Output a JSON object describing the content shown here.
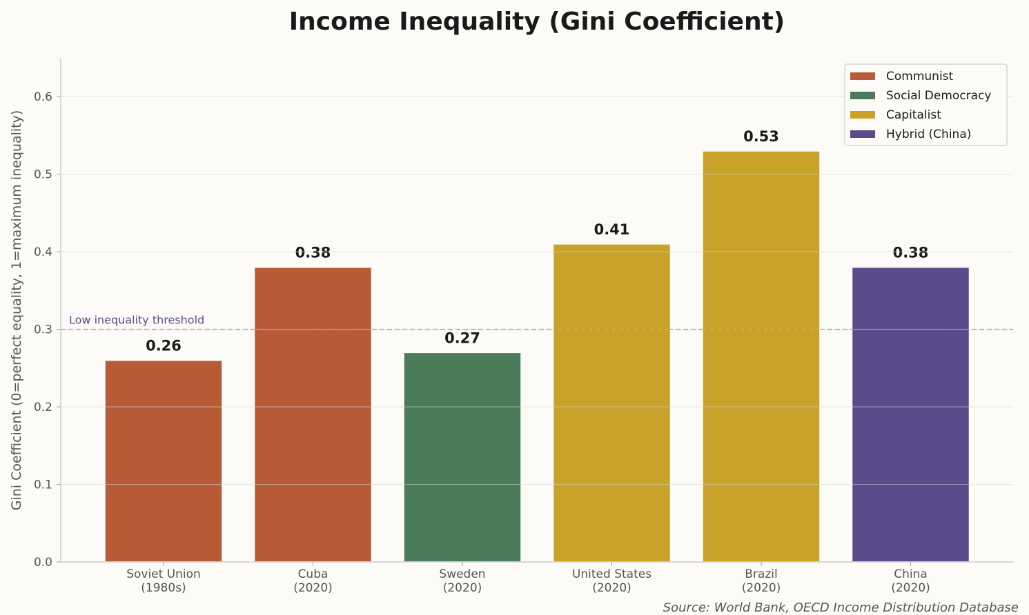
{
  "chart_data": {
    "type": "bar",
    "title": "Income Inequality (Gini Coefficient)",
    "xlabel": "",
    "ylabel": "Gini Coefficient (0=perfect equality, 1=maximum inequality)",
    "ylim": [
      0,
      0.65
    ],
    "yticks": [
      "0.0",
      "0.1",
      "0.2",
      "0.3",
      "0.4",
      "0.5",
      "0.6"
    ],
    "grid": true,
    "categories": [
      [
        "Soviet Union",
        "(1980s)"
      ],
      [
        "Cuba",
        "(2020)"
      ],
      [
        "Sweden",
        "(2020)"
      ],
      [
        "United States",
        "(2020)"
      ],
      [
        "Brazil",
        "(2020)"
      ],
      [
        "China",
        "(2020)"
      ]
    ],
    "values": [
      0.26,
      0.38,
      0.27,
      0.41,
      0.53,
      0.38
    ],
    "data_labels": [
      "0.26",
      "0.38",
      "0.27",
      "0.41",
      "0.53",
      "0.38"
    ],
    "groups": [
      "Communist",
      "Communist",
      "Social Democracy",
      "Capitalist",
      "Capitalist",
      "Hybrid (China)"
    ],
    "legend": {
      "placement": "top-right",
      "entries": [
        {
          "label": "Communist",
          "color": "#B85C38"
        },
        {
          "label": "Social Democracy",
          "color": "#4A7C59"
        },
        {
          "label": "Capitalist",
          "color": "#C9A229"
        },
        {
          "label": "Hybrid (China)",
          "color": "#5B4B8A"
        }
      ]
    },
    "reference_line": {
      "value": 0.3,
      "label": "Low inequality threshold",
      "color": "#9A90B8"
    },
    "source": "Source: World Bank, OECD Income Distribution Database"
  }
}
